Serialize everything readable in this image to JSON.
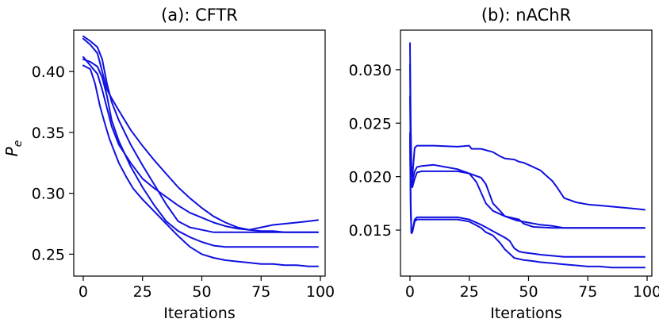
{
  "colors": {
    "series": "#1010e0",
    "axis": "#000000"
  },
  "chart_data": [
    {
      "type": "line",
      "title": "(a): CFTR",
      "xlabel": "Iterations",
      "ylabel": "P_e",
      "ylabel_main": "P",
      "ylabel_sub": "e",
      "xlim": [
        -4,
        102
      ],
      "ylim": [
        0.232,
        0.434
      ],
      "xticks": [
        0,
        25,
        50,
        75,
        100
      ],
      "xtick_labels": [
        "0",
        "25",
        "50",
        "75",
        "100"
      ],
      "yticks": [
        0.25,
        0.3,
        0.35,
        0.4
      ],
      "ytick_labels": [
        "0.25",
        "0.30",
        "0.35",
        "0.40"
      ],
      "grid": false,
      "series": [
        {
          "x": [
            0,
            3,
            6,
            8,
            10,
            12,
            15,
            20,
            25,
            30,
            35,
            40,
            45,
            50,
            55,
            60,
            65,
            70,
            75,
            80,
            85,
            90,
            95,
            99
          ],
          "y": [
            0.429,
            0.425,
            0.42,
            0.41,
            0.39,
            0.375,
            0.36,
            0.34,
            0.323,
            0.307,
            0.291,
            0.277,
            0.272,
            0.27,
            0.268,
            0.268,
            0.268,
            0.268,
            0.268,
            0.268,
            0.268,
            0.268,
            0.268,
            0.268
          ]
        },
        {
          "x": [
            0,
            3,
            6,
            8,
            10,
            12,
            15,
            20,
            25,
            30,
            35,
            40,
            45,
            50,
            55,
            60,
            65,
            70,
            75,
            80,
            85,
            90,
            95,
            99
          ],
          "y": [
            0.427,
            0.422,
            0.415,
            0.4,
            0.385,
            0.378,
            0.368,
            0.352,
            0.339,
            0.327,
            0.316,
            0.305,
            0.296,
            0.288,
            0.281,
            0.276,
            0.272,
            0.27,
            0.269,
            0.269,
            0.268,
            0.268,
            0.268,
            0.268
          ]
        },
        {
          "x": [
            0,
            3,
            6,
            8,
            10,
            12,
            15,
            20,
            25,
            30,
            35,
            40,
            45,
            50,
            55,
            60,
            65,
            70,
            75,
            80,
            85,
            90,
            95,
            99
          ],
          "y": [
            0.412,
            0.405,
            0.398,
            0.385,
            0.37,
            0.355,
            0.34,
            0.325,
            0.312,
            0.304,
            0.297,
            0.29,
            0.284,
            0.28,
            0.276,
            0.273,
            0.271,
            0.27,
            0.272,
            0.274,
            0.275,
            0.276,
            0.277,
            0.278
          ]
        },
        {
          "x": [
            0,
            3,
            6,
            8,
            10,
            12,
            15,
            20,
            25,
            30,
            35,
            40,
            45,
            50,
            55,
            60,
            65,
            70,
            75,
            80,
            85,
            90,
            95,
            99
          ],
          "y": [
            0.41,
            0.408,
            0.404,
            0.395,
            0.38,
            0.36,
            0.343,
            0.322,
            0.305,
            0.29,
            0.277,
            0.269,
            0.264,
            0.26,
            0.257,
            0.256,
            0.256,
            0.256,
            0.256,
            0.256,
            0.256,
            0.256,
            0.256,
            0.256
          ]
        },
        {
          "x": [
            0,
            3,
            5,
            7,
            9,
            11,
            13,
            15,
            18,
            21,
            25,
            30,
            35,
            40,
            45,
            50,
            55,
            60,
            65,
            70,
            75,
            80,
            85,
            90,
            95,
            99
          ],
          "y": [
            0.405,
            0.402,
            0.39,
            0.372,
            0.358,
            0.345,
            0.335,
            0.325,
            0.314,
            0.304,
            0.295,
            0.285,
            0.275,
            0.265,
            0.256,
            0.25,
            0.247,
            0.245,
            0.244,
            0.243,
            0.242,
            0.242,
            0.241,
            0.241,
            0.24,
            0.24
          ]
        }
      ]
    },
    {
      "type": "line",
      "title": "(b): nAChR",
      "xlabel": "Iterations",
      "ylabel": "",
      "xlim": [
        -4,
        102
      ],
      "ylim": [
        0.0107,
        0.0337
      ],
      "xticks": [
        0,
        25,
        50,
        75,
        100
      ],
      "xtick_labels": [
        "0",
        "25",
        "50",
        "75",
        "100"
      ],
      "yticks": [
        0.015,
        0.02,
        0.025,
        0.03
      ],
      "ytick_labels": [
        "0.015",
        "0.020",
        "0.025",
        "0.030"
      ],
      "grid": false,
      "series": [
        {
          "x": [
            0,
            0.3,
            0.6,
            1,
            2,
            3,
            5,
            10,
            20,
            25,
            26,
            30,
            35,
            38,
            40,
            44,
            46,
            48,
            50,
            55,
            58,
            60,
            62,
            65,
            70,
            75,
            80,
            85,
            90,
            95,
            99
          ],
          "y": [
            0.0325,
            0.025,
            0.021,
            0.02,
            0.0227,
            0.0229,
            0.0229,
            0.0229,
            0.0228,
            0.0229,
            0.0226,
            0.0226,
            0.0223,
            0.0219,
            0.0217,
            0.0216,
            0.0214,
            0.0213,
            0.0211,
            0.0206,
            0.02,
            0.0196,
            0.019,
            0.018,
            0.0176,
            0.0174,
            0.0173,
            0.0172,
            0.0171,
            0.017,
            0.0169
          ]
        },
        {
          "x": [
            0,
            0.3,
            0.6,
            1,
            2,
            3,
            5,
            10,
            15,
            20,
            25,
            30,
            32,
            35,
            38,
            40,
            44,
            46,
            48,
            52,
            60,
            70,
            80,
            90,
            99
          ],
          "y": [
            0.0305,
            0.0221,
            0.0193,
            0.0195,
            0.0205,
            0.0209,
            0.021,
            0.0211,
            0.0209,
            0.0207,
            0.0203,
            0.0199,
            0.0193,
            0.0175,
            0.0168,
            0.0163,
            0.0161,
            0.016,
            0.0156,
            0.0153,
            0.0152,
            0.0152,
            0.0152,
            0.0152,
            0.0152
          ]
        },
        {
          "x": [
            0,
            0.3,
            0.6,
            1,
            2,
            3,
            5,
            10,
            20,
            25,
            28,
            30,
            32,
            35,
            40,
            45,
            50,
            55,
            60,
            65,
            70,
            75,
            80,
            85,
            90,
            99
          ],
          "y": [
            0.0275,
            0.0215,
            0.0191,
            0.019,
            0.0198,
            0.0204,
            0.0205,
            0.0205,
            0.0205,
            0.0203,
            0.0195,
            0.0185,
            0.0175,
            0.0168,
            0.0163,
            0.0159,
            0.0157,
            0.0155,
            0.0154,
            0.0152,
            0.0152,
            0.0152,
            0.0152,
            0.0152,
            0.0152,
            0.0152
          ]
        },
        {
          "x": [
            0,
            0.3,
            0.6,
            1,
            2,
            3,
            5,
            10,
            20,
            25,
            30,
            35,
            40,
            42,
            44,
            46,
            48,
            52,
            55,
            60,
            65,
            70,
            75,
            80,
            90,
            99
          ],
          "y": [
            0.0241,
            0.0175,
            0.0148,
            0.0149,
            0.016,
            0.0162,
            0.0162,
            0.0162,
            0.0162,
            0.016,
            0.0155,
            0.0149,
            0.0143,
            0.014,
            0.0133,
            0.013,
            0.0129,
            0.0128,
            0.0127,
            0.0126,
            0.0125,
            0.0125,
            0.0125,
            0.0125,
            0.0125,
            0.0125
          ]
        },
        {
          "x": [
            0,
            0.3,
            0.6,
            1,
            2,
            3,
            5,
            10,
            20,
            25,
            30,
            32,
            35,
            38,
            40,
            42,
            44,
            48,
            52,
            55,
            60,
            65,
            70,
            75,
            80,
            85,
            90,
            95,
            99
          ],
          "y": [
            0.0236,
            0.0168,
            0.0147,
            0.0148,
            0.0158,
            0.016,
            0.016,
            0.016,
            0.016,
            0.0158,
            0.0152,
            0.0148,
            0.0145,
            0.0138,
            0.0132,
            0.0128,
            0.0124,
            0.0122,
            0.0121,
            0.012,
            0.0119,
            0.0118,
            0.0117,
            0.0116,
            0.0116,
            0.0115,
            0.0115,
            0.0115,
            0.0115
          ]
        }
      ]
    }
  ]
}
